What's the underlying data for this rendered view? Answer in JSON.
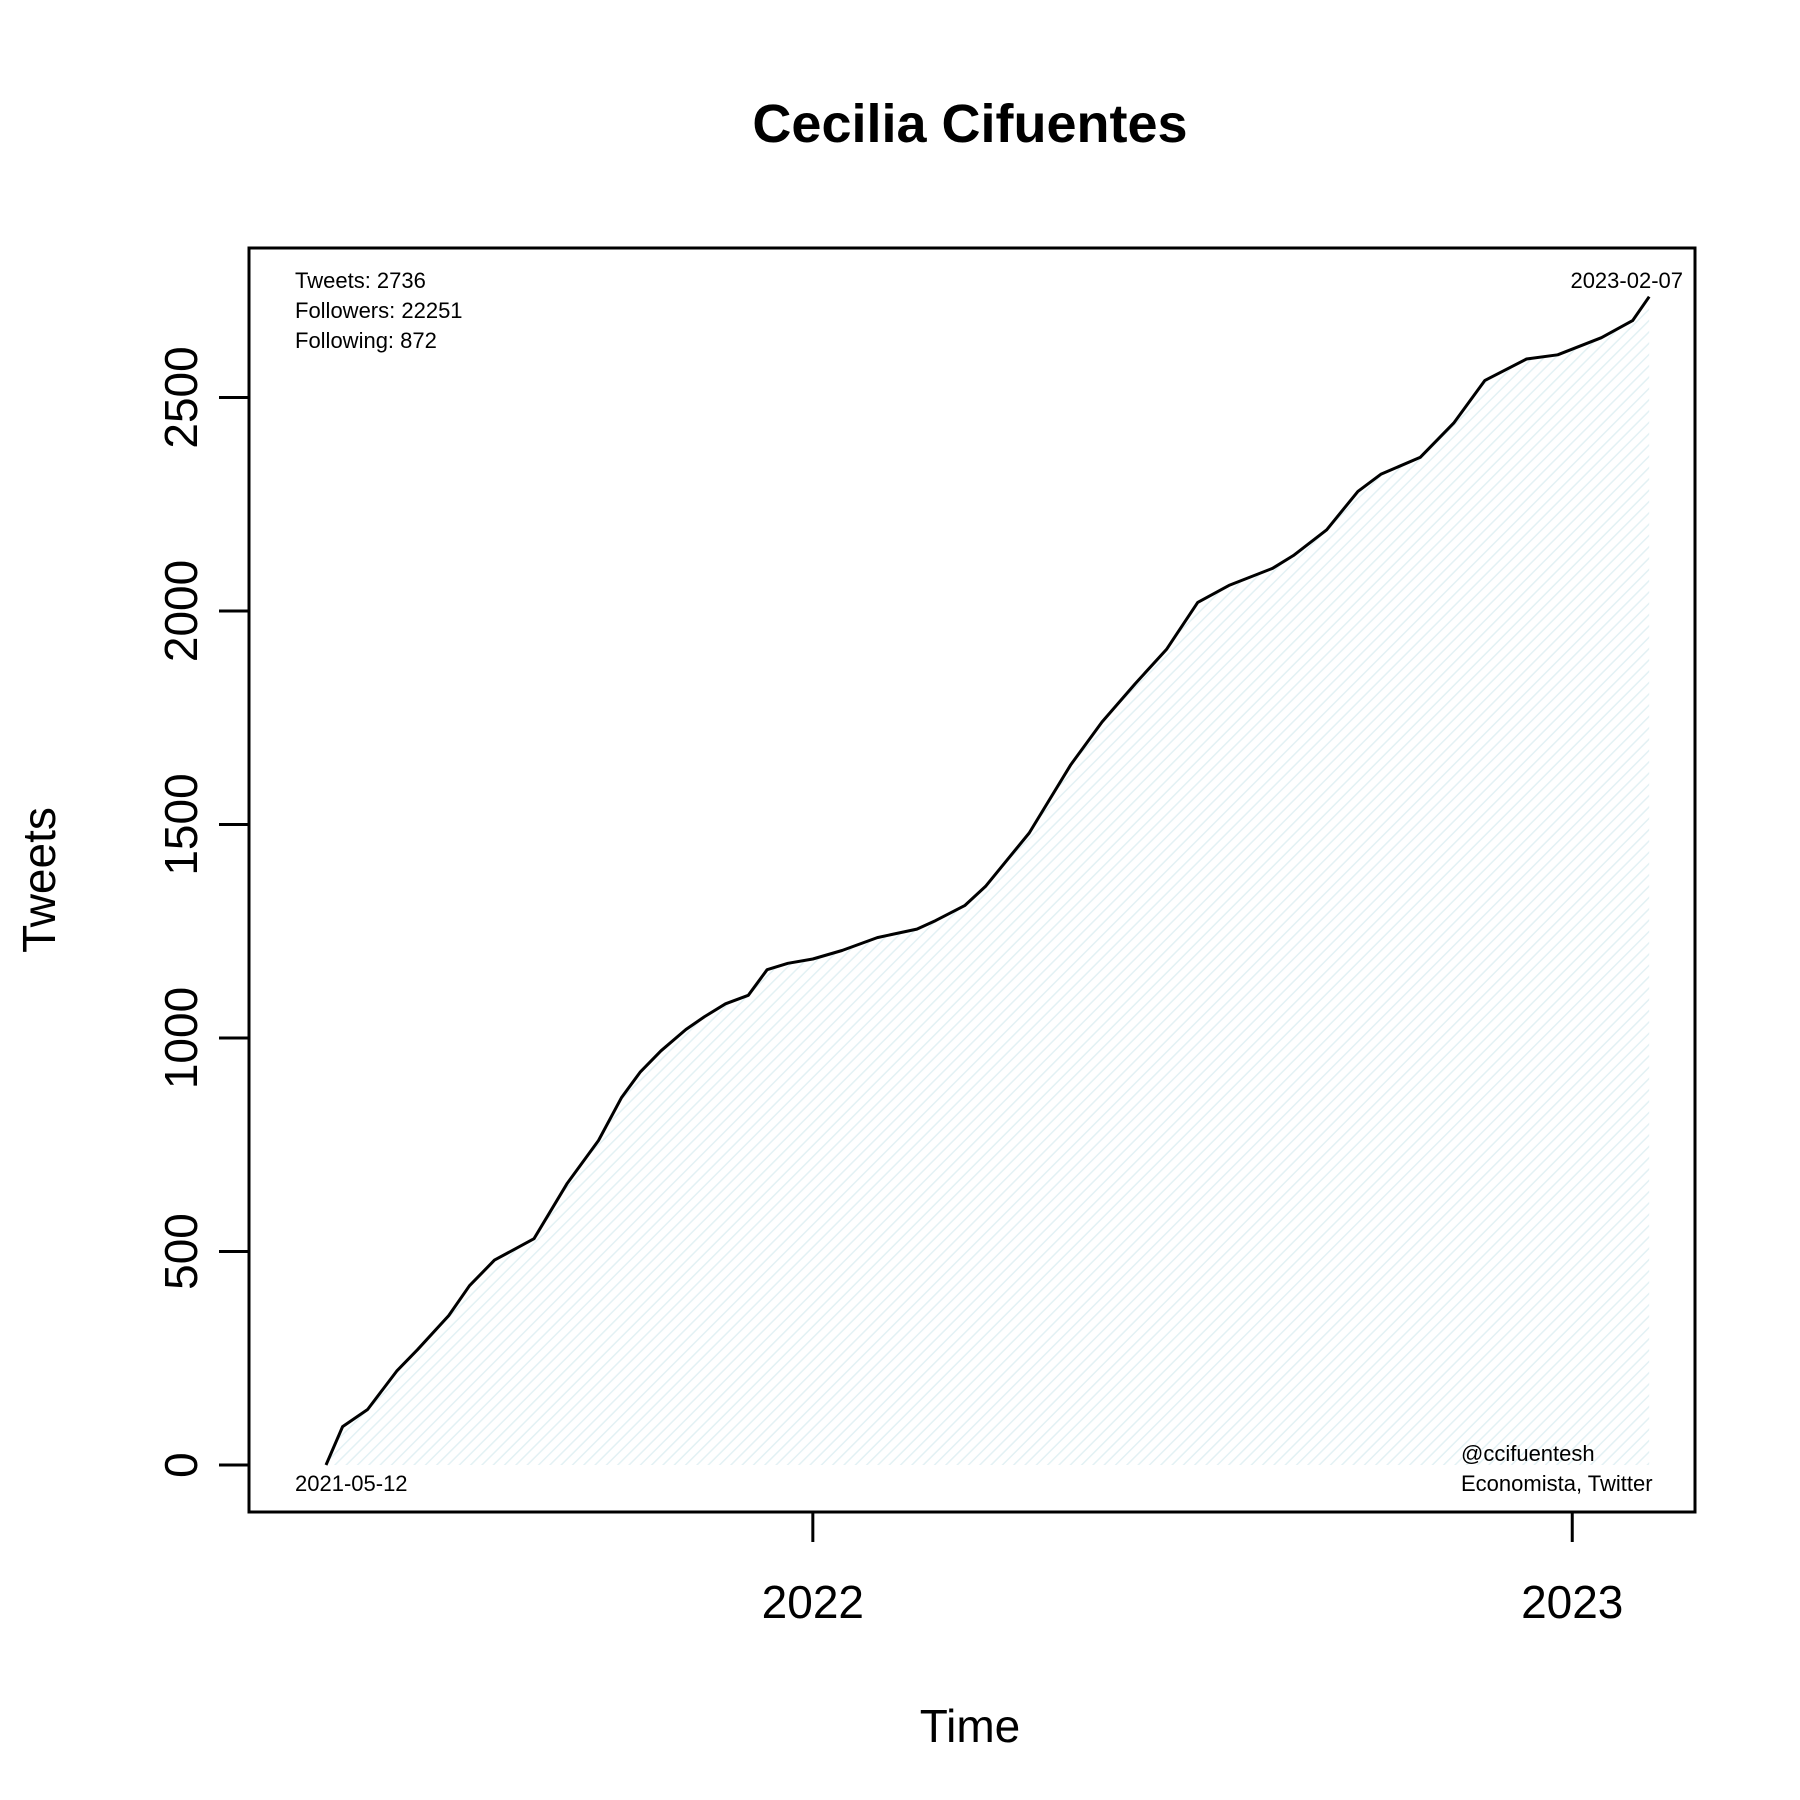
{
  "chart_data": {
    "type": "area",
    "title": "Cecilia Cifuentes",
    "xlabel": "Time",
    "ylabel": "Tweets",
    "xlim": [
      "2021-04-05",
      "2023-03-01"
    ],
    "ylim": [
      -110,
      2850
    ],
    "x_ticks": [
      {
        "date": "2022-01-01",
        "label": "2022"
      },
      {
        "date": "2023-01-01",
        "label": "2023"
      }
    ],
    "y_ticks": [
      0,
      500,
      1000,
      1500,
      2000,
      2500
    ],
    "grid": false,
    "line_color": "#000000",
    "fill_color": "#e3f1f4",
    "stats": {
      "tweets": "Tweets: 2736",
      "followers": "Followers: 22251",
      "following": "Following: 872"
    },
    "start_date_label": "2021-05-12",
    "end_date_label": "2023-02-07",
    "handle": "@ccifuentesh",
    "description": "Economista, Twitter",
    "series": [
      {
        "x": [
          "2021-05-12",
          "2021-05-20",
          "2021-06-01",
          "2021-06-15",
          "2021-06-25",
          "2021-07-10",
          "2021-07-20",
          "2021-08-01",
          "2021-08-20",
          "2021-09-05",
          "2021-09-20",
          "2021-10-01",
          "2021-10-10",
          "2021-10-20",
          "2021-11-01",
          "2021-11-10",
          "2021-11-20",
          "2021-12-01",
          "2021-12-10",
          "2021-12-20",
          "2022-01-01",
          "2022-01-15",
          "2022-02-01",
          "2022-02-20",
          "2022-03-01",
          "2022-03-15",
          "2022-03-25",
          "2022-04-15",
          "2022-05-05",
          "2022-05-20",
          "2022-06-05",
          "2022-06-20",
          "2022-07-05",
          "2022-07-20",
          "2022-08-10",
          "2022-08-20",
          "2022-09-05",
          "2022-09-20",
          "2022-10-01",
          "2022-10-20",
          "2022-11-05",
          "2022-11-20",
          "2022-12-10",
          "2022-12-25",
          "2023-01-15",
          "2023-01-30",
          "2023-02-07"
        ],
        "y": [
          0,
          90,
          130,
          220,
          270,
          350,
          420,
          480,
          530,
          660,
          760,
          860,
          920,
          970,
          1020,
          1050,
          1080,
          1100,
          1160,
          1175,
          1185,
          1205,
          1235,
          1255,
          1275,
          1310,
          1355,
          1480,
          1640,
          1740,
          1830,
          1910,
          2020,
          2060,
          2100,
          2130,
          2190,
          2280,
          2320,
          2360,
          2440,
          2540,
          2590,
          2600,
          2640,
          2680,
          2736
        ]
      }
    ]
  }
}
